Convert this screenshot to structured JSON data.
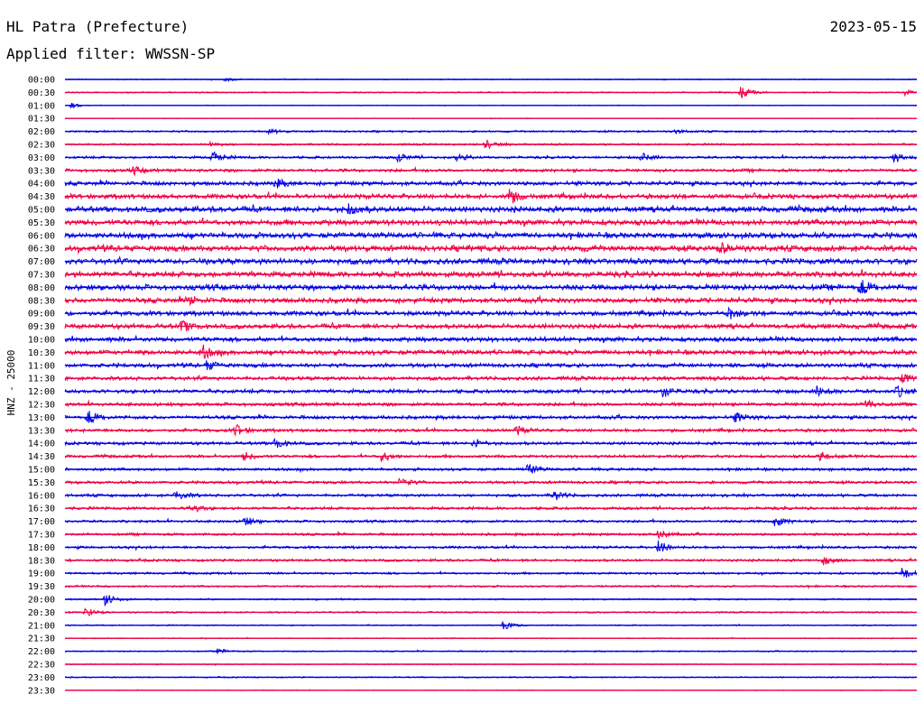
{
  "header": {
    "station": "HL Patra (Prefecture)",
    "date": "2023-05-15",
    "filter": "Applied filter: WWSSN-SP"
  },
  "colors": {
    "even_trace": "#0000ee",
    "odd_trace": "#ee0044",
    "text": "#000000",
    "background": "#ffffff"
  },
  "chart_data": {
    "type": "line",
    "title": "HL Patra (Prefecture)",
    "ylabel": "HNZ - 25000",
    "xlabel": "",
    "x_unit": "minutes within 30-minute row",
    "xlim": [
      0,
      30
    ],
    "row_labels": [
      "00:00",
      "00:30",
      "01:00",
      "01:30",
      "02:00",
      "02:30",
      "03:00",
      "03:30",
      "04:00",
      "04:30",
      "05:00",
      "05:30",
      "06:00",
      "06:30",
      "07:00",
      "07:30",
      "08:00",
      "08:30",
      "09:00",
      "09:30",
      "10:00",
      "10:30",
      "11:00",
      "11:30",
      "12:00",
      "12:30",
      "13:00",
      "13:30",
      "14:00",
      "14:30",
      "15:00",
      "15:30",
      "16:00",
      "16:30",
      "17:00",
      "17:30",
      "18:00",
      "18:30",
      "19:00",
      "19:30",
      "20:00",
      "20:30",
      "21:00",
      "21:30",
      "22:00",
      "22:30",
      "23:00",
      "23:30"
    ],
    "noise_level": [
      0.6,
      0.8,
      0.5,
      0.4,
      1.2,
      1.2,
      1.6,
      2.0,
      2.6,
      3.0,
      3.6,
      3.6,
      3.6,
      3.8,
      3.6,
      3.6,
      3.6,
      3.2,
      3.0,
      3.0,
      3.0,
      3.0,
      2.6,
      2.4,
      2.4,
      2.2,
      2.2,
      2.0,
      2.0,
      1.8,
      1.8,
      1.8,
      1.8,
      1.8,
      1.6,
      1.6,
      1.6,
      1.6,
      1.4,
      1.2,
      1.0,
      1.0,
      0.8,
      0.6,
      0.8,
      0.6,
      0.8,
      0.5
    ],
    "events": [
      {
        "row": 0,
        "minute": 5.6,
        "amplitude": 2.5
      },
      {
        "row": 1,
        "minute": 23.8,
        "amplitude": 7
      },
      {
        "row": 1,
        "minute": 29.6,
        "amplitude": 4
      },
      {
        "row": 2,
        "minute": 0.2,
        "amplitude": 3
      },
      {
        "row": 4,
        "minute": 7.2,
        "amplitude": 3
      },
      {
        "row": 4,
        "minute": 21.5,
        "amplitude": 2.5
      },
      {
        "row": 5,
        "minute": 5.1,
        "amplitude": 3
      },
      {
        "row": 5,
        "minute": 14.8,
        "amplitude": 5
      },
      {
        "row": 6,
        "minute": 5.2,
        "amplitude": 7
      },
      {
        "row": 6,
        "minute": 11.7,
        "amplitude": 5
      },
      {
        "row": 6,
        "minute": 13.8,
        "amplitude": 4
      },
      {
        "row": 6,
        "minute": 20.3,
        "amplitude": 5
      },
      {
        "row": 6,
        "minute": 29.2,
        "amplitude": 6
      },
      {
        "row": 7,
        "minute": 2.4,
        "amplitude": 4
      },
      {
        "row": 8,
        "minute": 7.4,
        "amplitude": 5
      },
      {
        "row": 9,
        "minute": 15.6,
        "amplitude": 9
      },
      {
        "row": 10,
        "minute": 10.0,
        "amplitude": 6
      },
      {
        "row": 13,
        "minute": 23.1,
        "amplitude": 5
      },
      {
        "row": 16,
        "minute": 28.0,
        "amplitude": 9
      },
      {
        "row": 17,
        "minute": 4.4,
        "amplitude": 5
      },
      {
        "row": 18,
        "minute": 23.4,
        "amplitude": 5
      },
      {
        "row": 19,
        "minute": 4.1,
        "amplitude": 6
      },
      {
        "row": 21,
        "minute": 4.8,
        "amplitude": 8
      },
      {
        "row": 22,
        "minute": 5.0,
        "amplitude": 6
      },
      {
        "row": 23,
        "minute": 29.5,
        "amplitude": 5
      },
      {
        "row": 24,
        "minute": 21.0,
        "amplitude": 7
      },
      {
        "row": 24,
        "minute": 26.5,
        "amplitude": 6
      },
      {
        "row": 24,
        "minute": 29.3,
        "amplitude": 6
      },
      {
        "row": 25,
        "minute": 28.2,
        "amplitude": 5
      },
      {
        "row": 26,
        "minute": 0.8,
        "amplitude": 8
      },
      {
        "row": 26,
        "minute": 23.6,
        "amplitude": 6
      },
      {
        "row": 27,
        "minute": 6.0,
        "amplitude": 7
      },
      {
        "row": 27,
        "minute": 15.9,
        "amplitude": 5
      },
      {
        "row": 28,
        "minute": 7.4,
        "amplitude": 6
      },
      {
        "row": 28,
        "minute": 14.4,
        "amplitude": 5
      },
      {
        "row": 29,
        "minute": 6.3,
        "amplitude": 5
      },
      {
        "row": 29,
        "minute": 11.1,
        "amplitude": 7
      },
      {
        "row": 29,
        "minute": 26.6,
        "amplitude": 5
      },
      {
        "row": 30,
        "minute": 16.3,
        "amplitude": 6
      },
      {
        "row": 31,
        "minute": 11.8,
        "amplitude": 6
      },
      {
        "row": 32,
        "minute": 3.9,
        "amplitude": 6
      },
      {
        "row": 32,
        "minute": 17.2,
        "amplitude": 6
      },
      {
        "row": 33,
        "minute": 4.4,
        "amplitude": 6
      },
      {
        "row": 34,
        "minute": 6.3,
        "amplitude": 6
      },
      {
        "row": 34,
        "minute": 25.0,
        "amplitude": 6
      },
      {
        "row": 35,
        "minute": 20.9,
        "amplitude": 6
      },
      {
        "row": 36,
        "minute": 20.9,
        "amplitude": 8
      },
      {
        "row": 37,
        "minute": 26.7,
        "amplitude": 5
      },
      {
        "row": 38,
        "minute": 29.5,
        "amplitude": 7
      },
      {
        "row": 40,
        "minute": 1.4,
        "amplitude": 7
      },
      {
        "row": 41,
        "minute": 0.7,
        "amplitude": 6
      },
      {
        "row": 42,
        "minute": 15.4,
        "amplitude": 6
      },
      {
        "row": 44,
        "minute": 5.4,
        "amplitude": 3
      }
    ]
  }
}
